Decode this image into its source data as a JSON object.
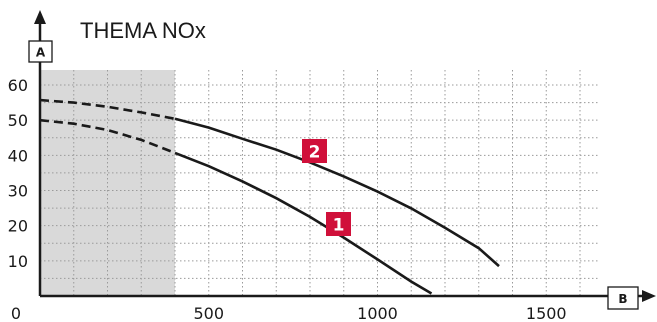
{
  "chart_data": {
    "type": "line",
    "title": "THEMA NOx",
    "ylabel": "A",
    "xlabel": "B",
    "xlim": [
      0,
      1500
    ],
    "ylim": [
      0,
      65
    ],
    "x_ticks": [
      500,
      1000,
      1500
    ],
    "y_ticks": [
      10,
      20,
      30,
      40,
      50,
      60
    ],
    "origin_label": "0",
    "grid": true,
    "shaded_region": {
      "x_from": 0,
      "x_to": 400
    },
    "series": [
      {
        "name": "1",
        "points": [
          [
            0,
            50
          ],
          [
            100,
            49
          ],
          [
            200,
            47.2
          ],
          [
            300,
            44.4
          ],
          [
            400,
            40.7
          ],
          [
            500,
            36.9
          ],
          [
            600,
            32.6
          ],
          [
            700,
            27.8
          ],
          [
            800,
            22.5
          ],
          [
            900,
            16.6
          ],
          [
            1000,
            10.4
          ],
          [
            1100,
            4.1
          ],
          [
            1160,
            0.7
          ]
        ]
      },
      {
        "name": "2",
        "points": [
          [
            0,
            55.7
          ],
          [
            100,
            55
          ],
          [
            200,
            53.8
          ],
          [
            300,
            52.2
          ],
          [
            400,
            50.4
          ],
          [
            500,
            47.9
          ],
          [
            600,
            44.7
          ],
          [
            700,
            41.6
          ],
          [
            800,
            38
          ],
          [
            900,
            34
          ],
          [
            1000,
            29.7
          ],
          [
            1100,
            24.9
          ],
          [
            1200,
            19.4
          ],
          [
            1300,
            13.6
          ],
          [
            1360,
            8.5
          ]
        ]
      }
    ],
    "dashed_until_x": 400,
    "badge_color": "#d0103a"
  }
}
